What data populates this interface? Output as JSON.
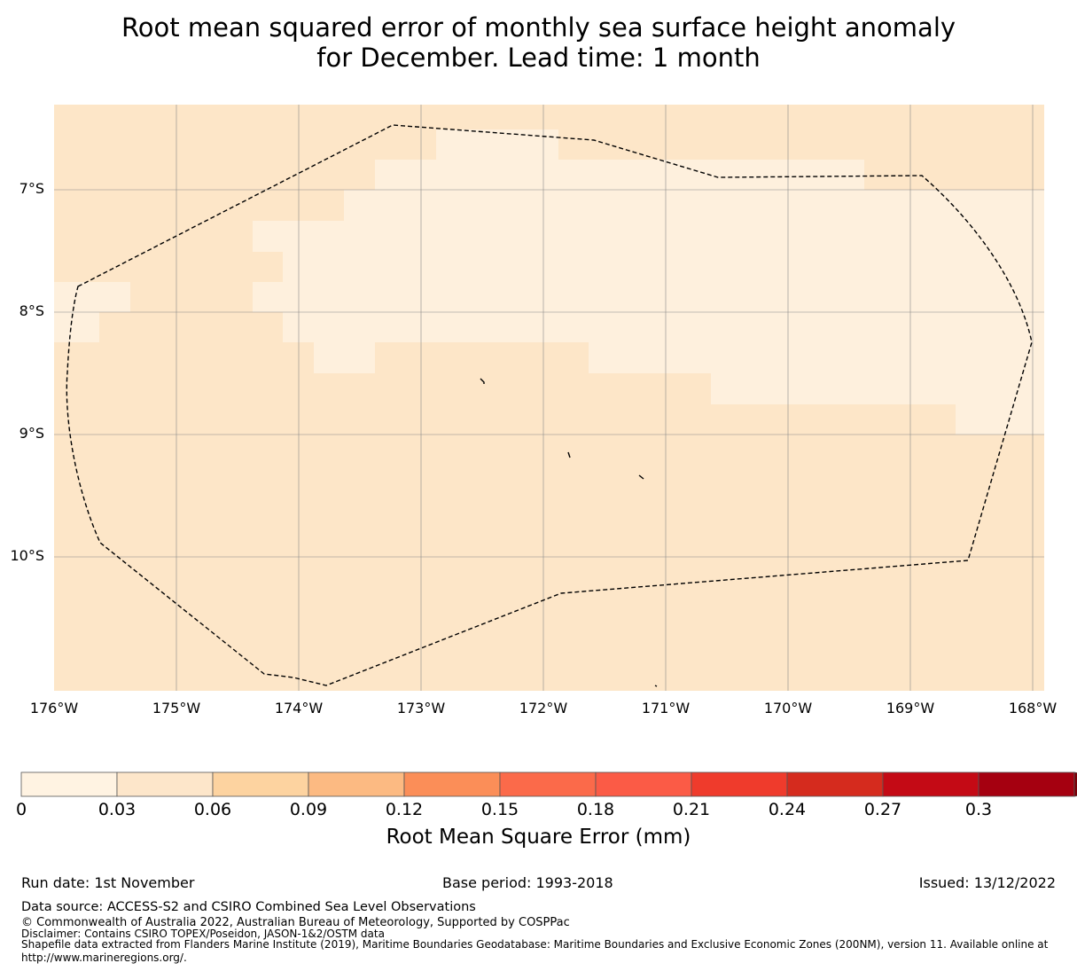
{
  "title_line1": "Root mean squared error of monthly sea surface height anomaly",
  "title_line2": "for December. Lead time: 1 month",
  "map": {
    "lat_labels": [
      "7°S",
      "8°S",
      "9°S",
      "10°S"
    ],
    "lon_labels": [
      "176°W",
      "175°W",
      "174°W",
      "173°W",
      "172°W",
      "171°W",
      "170°W",
      "169°W",
      "168°W"
    ],
    "colors": {
      "low": "#fef0dd",
      "mid": "#fde6c8",
      "boundary": "#000000",
      "grid": "#888888"
    },
    "boundary_style": "dashed EEZ outline",
    "icon": "island-marks"
  },
  "colorbar": {
    "label": "Root Mean Square Error (mm)",
    "ticks": [
      "0",
      "0.03",
      "0.06",
      "0.09",
      "0.12",
      "0.15",
      "0.18",
      "0.21",
      "0.24",
      "0.27",
      "0.3"
    ],
    "colors": [
      "#fff3e2",
      "#fde6ca",
      "#fdd3a0",
      "#fcba82",
      "#fb8e58",
      "#fb6a4a",
      "#fb5b46",
      "#ef3b2c",
      "#d52b1e",
      "#c40a15",
      "#a50010"
    ],
    "extend_color": "#7a0008"
  },
  "footer": {
    "run_date": "Run date: 1st November",
    "base_period": "Base period: 1993-2018",
    "issued": "Issued: 13/12/2022",
    "data_source": "Data source: ACCESS-S2 and CSIRO Combined Sea Level Observations",
    "copyright": "© Commonwealth of Australia 2022, Australian Bureau of Meteorology, Supported by COSPPac",
    "disclaimer": "Disclaimer: Contains CSIRO TOPEX/Poseidon, JASON-1&2/OSTM data",
    "shapefile_line1": "Shapefile data extracted from Flanders Marine Institute (2019), Maritime Boundaries Geodatabase: Maritime Boundaries and Exclusive Economic Zones (200NM), version 11. Available online at",
    "shapefile_line2": "http://www.marineregions.org/."
  }
}
